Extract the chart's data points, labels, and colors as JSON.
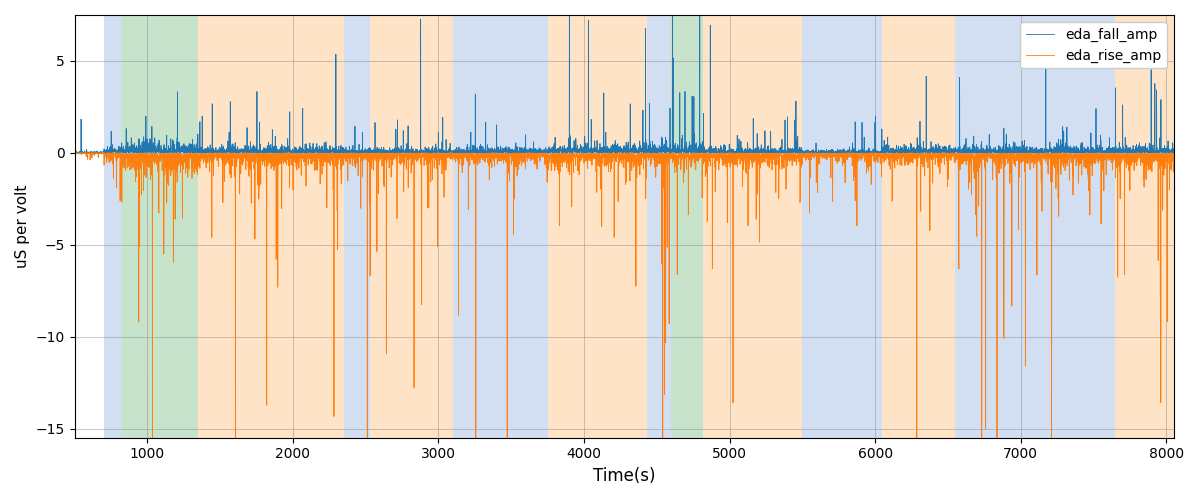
{
  "xlabel": "Time(s)",
  "ylabel": "uS per volt",
  "xlim": [
    500,
    8050
  ],
  "ylim": [
    -15.5,
    7.5
  ],
  "yticks": [
    -15,
    -10,
    -5,
    0,
    5
  ],
  "xticks": [
    1000,
    2000,
    3000,
    4000,
    5000,
    6000,
    7000,
    8000
  ],
  "legend_labels": [
    "eda_fall_amp",
    "eda_rise_amp"
  ],
  "fall_color": "#1f77b4",
  "rise_color": "#ff7f0e",
  "bg_bands": [
    {
      "xmin": 700,
      "xmax": 820,
      "color": "#aec6e8",
      "alpha": 0.55
    },
    {
      "xmin": 820,
      "xmax": 1350,
      "color": "#90c898",
      "alpha": 0.5
    },
    {
      "xmin": 1350,
      "xmax": 2350,
      "color": "#ffcc99",
      "alpha": 0.55
    },
    {
      "xmin": 2350,
      "xmax": 2530,
      "color": "#aec6e8",
      "alpha": 0.55
    },
    {
      "xmin": 2530,
      "xmax": 3100,
      "color": "#ffcc99",
      "alpha": 0.55
    },
    {
      "xmin": 3100,
      "xmax": 3750,
      "color": "#aec6e8",
      "alpha": 0.55
    },
    {
      "xmin": 3750,
      "xmax": 4430,
      "color": "#ffcc99",
      "alpha": 0.55
    },
    {
      "xmin": 4430,
      "xmax": 4600,
      "color": "#aec6e8",
      "alpha": 0.55
    },
    {
      "xmin": 4600,
      "xmax": 4820,
      "color": "#90c898",
      "alpha": 0.5
    },
    {
      "xmin": 4820,
      "xmax": 5500,
      "color": "#ffcc99",
      "alpha": 0.55
    },
    {
      "xmin": 5500,
      "xmax": 6050,
      "color": "#aec6e8",
      "alpha": 0.55
    },
    {
      "xmin": 6050,
      "xmax": 6550,
      "color": "#ffcc99",
      "alpha": 0.55
    },
    {
      "xmin": 6550,
      "xmax": 7650,
      "color": "#aec6e8",
      "alpha": 0.55
    },
    {
      "xmin": 7650,
      "xmax": 8050,
      "color": "#ffcc99",
      "alpha": 0.55
    }
  ],
  "seed": 42,
  "n_points": 7550,
  "time_start": 500,
  "time_end": 8050
}
